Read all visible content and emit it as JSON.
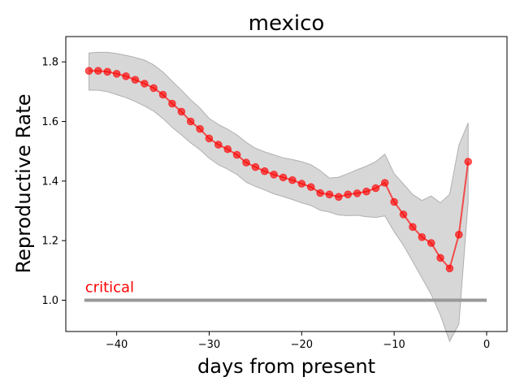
{
  "chart_data": {
    "type": "line",
    "title": "mexico",
    "xlabel": "days from present",
    "ylabel": "Reproductive Rate",
    "xlim": [
      -45.5,
      2.2
    ],
    "ylim": [
      0.895,
      1.885
    ],
    "xticks": [
      -40,
      -30,
      -20,
      -10,
      0
    ],
    "yticks": [
      1.0,
      1.2,
      1.4,
      1.6,
      1.8
    ],
    "grid": false,
    "series": [
      {
        "color": "#ff0000",
        "x": [
          -43,
          -42,
          -41,
          -40,
          -39,
          -38,
          -37,
          -36,
          -35,
          -34,
          -33,
          -32,
          -31,
          -30,
          -29,
          -28,
          -27,
          -26,
          -25,
          -24,
          -23,
          -22,
          -21,
          -20,
          -19,
          -18,
          -17,
          -16,
          -15,
          -14,
          -13,
          -12,
          -11,
          -10,
          -9,
          -8,
          -7,
          -6,
          -5,
          -4,
          -3,
          -2
        ],
        "y": [
          1.77,
          1.77,
          1.767,
          1.76,
          1.752,
          1.74,
          1.727,
          1.712,
          1.69,
          1.66,
          1.633,
          1.6,
          1.575,
          1.543,
          1.522,
          1.507,
          1.488,
          1.462,
          1.447,
          1.433,
          1.422,
          1.412,
          1.403,
          1.391,
          1.38,
          1.36,
          1.355,
          1.347,
          1.355,
          1.359,
          1.365,
          1.376,
          1.394,
          1.33,
          1.288,
          1.246,
          1.212,
          1.192,
          1.142,
          1.107,
          1.22,
          1.465
        ]
      }
    ],
    "confidence_band": {
      "color": "#b0b0b0",
      "upper": [
        1.83,
        1.832,
        1.832,
        1.828,
        1.822,
        1.815,
        1.806,
        1.79,
        1.766,
        1.735,
        1.705,
        1.673,
        1.645,
        1.61,
        1.59,
        1.574,
        1.555,
        1.53,
        1.51,
        1.498,
        1.488,
        1.478,
        1.472,
        1.465,
        1.455,
        1.435,
        1.41,
        1.413,
        1.425,
        1.438,
        1.45,
        1.465,
        1.49,
        1.425,
        1.39,
        1.355,
        1.335,
        1.35,
        1.327,
        1.355,
        1.52,
        1.595
      ],
      "lower": [
        1.705,
        1.705,
        1.7,
        1.69,
        1.68,
        1.667,
        1.652,
        1.635,
        1.61,
        1.58,
        1.555,
        1.528,
        1.505,
        1.477,
        1.455,
        1.44,
        1.422,
        1.396,
        1.382,
        1.37,
        1.357,
        1.348,
        1.338,
        1.327,
        1.318,
        1.302,
        1.296,
        1.286,
        1.284,
        1.285,
        1.28,
        1.278,
        1.283,
        1.23,
        1.185,
        1.13,
        1.075,
        1.02,
        0.95,
        0.862,
        0.92,
        1.33
      ]
    },
    "critical_line": {
      "label": "critical",
      "value": 1.0,
      "x_range": [
        -43.5,
        0
      ],
      "color": "#999999",
      "label_color": "#ff0000"
    }
  }
}
